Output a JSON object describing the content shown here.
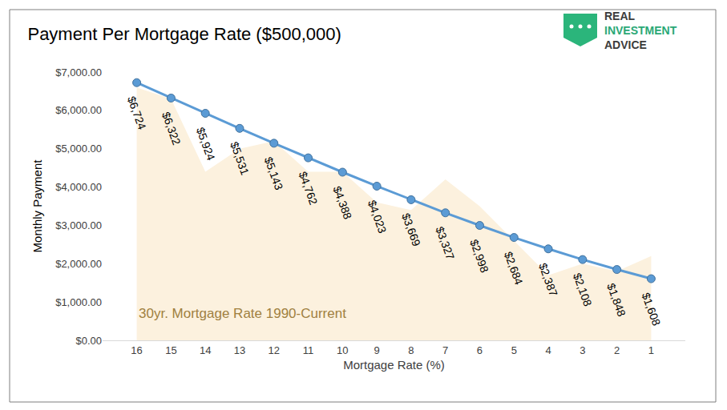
{
  "chart_data": {
    "type": "line",
    "title": "Payment Per Mortgage Rate ($500,000)",
    "x_label": "Mortgage Rate (%)",
    "y_label": "Monthly Payment",
    "logo": [
      "REAL",
      "INVESTMENT",
      "ADVICE"
    ],
    "categories": [
      "16",
      "15",
      "14",
      "13",
      "12",
      "11",
      "10",
      "9",
      "8",
      "7",
      "6",
      "5",
      "4",
      "3",
      "2",
      "1"
    ],
    "series": [
      {
        "name": "30yr. Mortgage Rate 1990-Current",
        "type": "area",
        "color": "#fcf1de",
        "values": [
          6600,
          6300,
          4400,
          5000,
          5200,
          4400,
          4400,
          3600,
          3400,
          4200,
          3500,
          2600,
          1700,
          2000,
          1800,
          2200
        ]
      },
      {
        "type": "line",
        "color": "#5b9bd5",
        "marker": "circle",
        "values": [
          6724,
          6322,
          5924,
          5531,
          5143,
          4762,
          4388,
          4023,
          3669,
          3327,
          2998,
          2684,
          2387,
          2108,
          1848,
          1608
        ],
        "value_labels": [
          "$6,724",
          "$6,322",
          "$5,924",
          "$5,531",
          "$5,143",
          "$4,762",
          "$4,388",
          "$4,023",
          "$3,669",
          "$3,327",
          "$2,998",
          "$2,684",
          "$2,387",
          "$2,108",
          "$1,848",
          "$1,608"
        ]
      }
    ],
    "data_labels": true,
    "grid": false,
    "ylim": [
      0,
      7000
    ],
    "yticks": [
      {
        "value": 0,
        "label": "$0.00"
      },
      {
        "value": 1000,
        "label": "$1,000.00"
      },
      {
        "value": 2000,
        "label": "$2,000.00"
      },
      {
        "value": 3000,
        "label": "$3,000.00"
      },
      {
        "value": 4000,
        "label": "$4,000.00"
      },
      {
        "value": 5000,
        "label": "$5,000.00"
      },
      {
        "value": 6000,
        "label": "$6,000.00"
      },
      {
        "value": 7000,
        "label": "$7,000.00"
      }
    ]
  }
}
